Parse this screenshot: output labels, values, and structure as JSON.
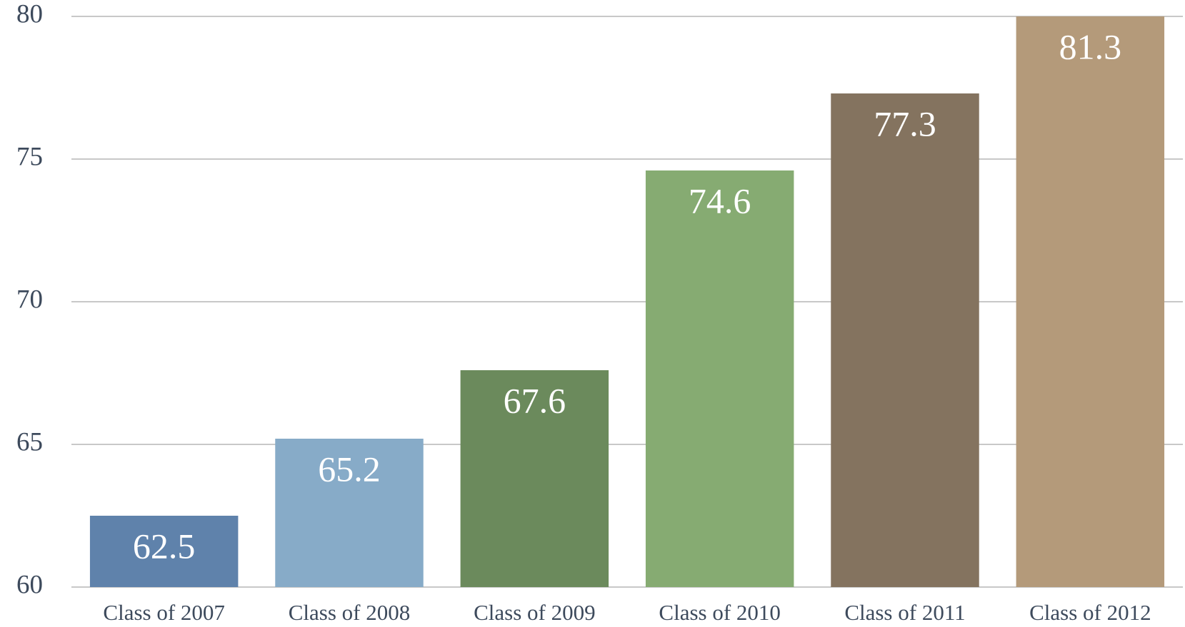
{
  "chart_data": {
    "type": "bar",
    "categories": [
      "Class of 2007",
      "Class of 2008",
      "Class of 2009",
      "Class of 2010",
      "Class of 2011",
      "Class of 2012"
    ],
    "values": [
      62.5,
      65.2,
      67.6,
      74.6,
      77.3,
      81.3
    ],
    "colors": [
      "#5f82ab",
      "#87abc8",
      "#6b8a5c",
      "#86ab72",
      "#84735f",
      "#b49a7a"
    ],
    "ylim": [
      60,
      80
    ],
    "yticks": [
      60,
      65,
      70,
      75,
      80
    ],
    "grid": true
  }
}
